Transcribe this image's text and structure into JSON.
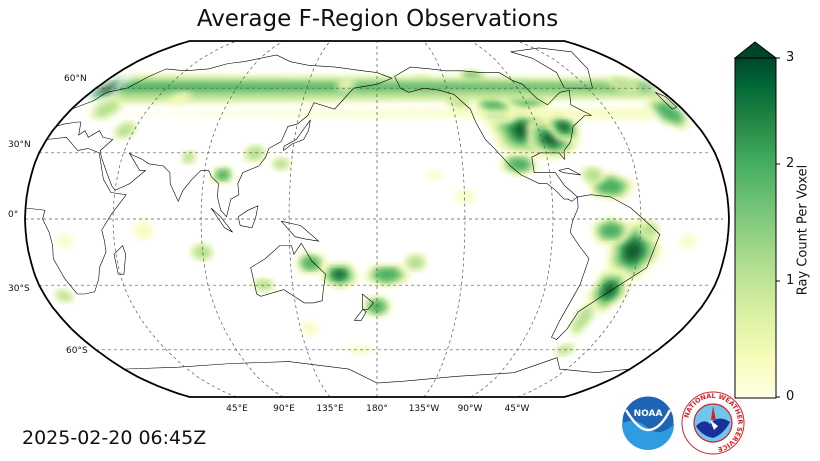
{
  "title": "Average F-Region Observations",
  "timestamp": "2025-02-20 06:45Z",
  "map": {
    "projection": "Robinson",
    "central_longitude": 180,
    "lat_labels": [
      "60°N",
      "30°N",
      "0°",
      "30°S",
      "60°S"
    ],
    "lon_labels": [
      "45°E",
      "90°E",
      "135°E",
      "180°",
      "135°W",
      "90°W",
      "45°W"
    ],
    "gridlines": "dashed",
    "coastlines": true,
    "country_borders": true
  },
  "colorbar": {
    "label": "Ray Count Per Voxel",
    "ticks": [
      "0",
      "1",
      "2",
      "3"
    ],
    "min": 0,
    "max": 3,
    "extend": "max",
    "colormap": "YlGn",
    "color_low": "#ffffe5",
    "color_high": "#004529"
  },
  "logos": {
    "noaa": "NOAA",
    "nws_ring": "NATIONAL WEATHER SERVICE"
  },
  "colors": {
    "dark_green": "#0b5a2a",
    "mid_green": "#3aa055",
    "light_green": "#9cd38a",
    "pale": "#e5f5a9",
    "noaa_blue": "#1d64b4",
    "nws_red": "#d42027"
  }
}
